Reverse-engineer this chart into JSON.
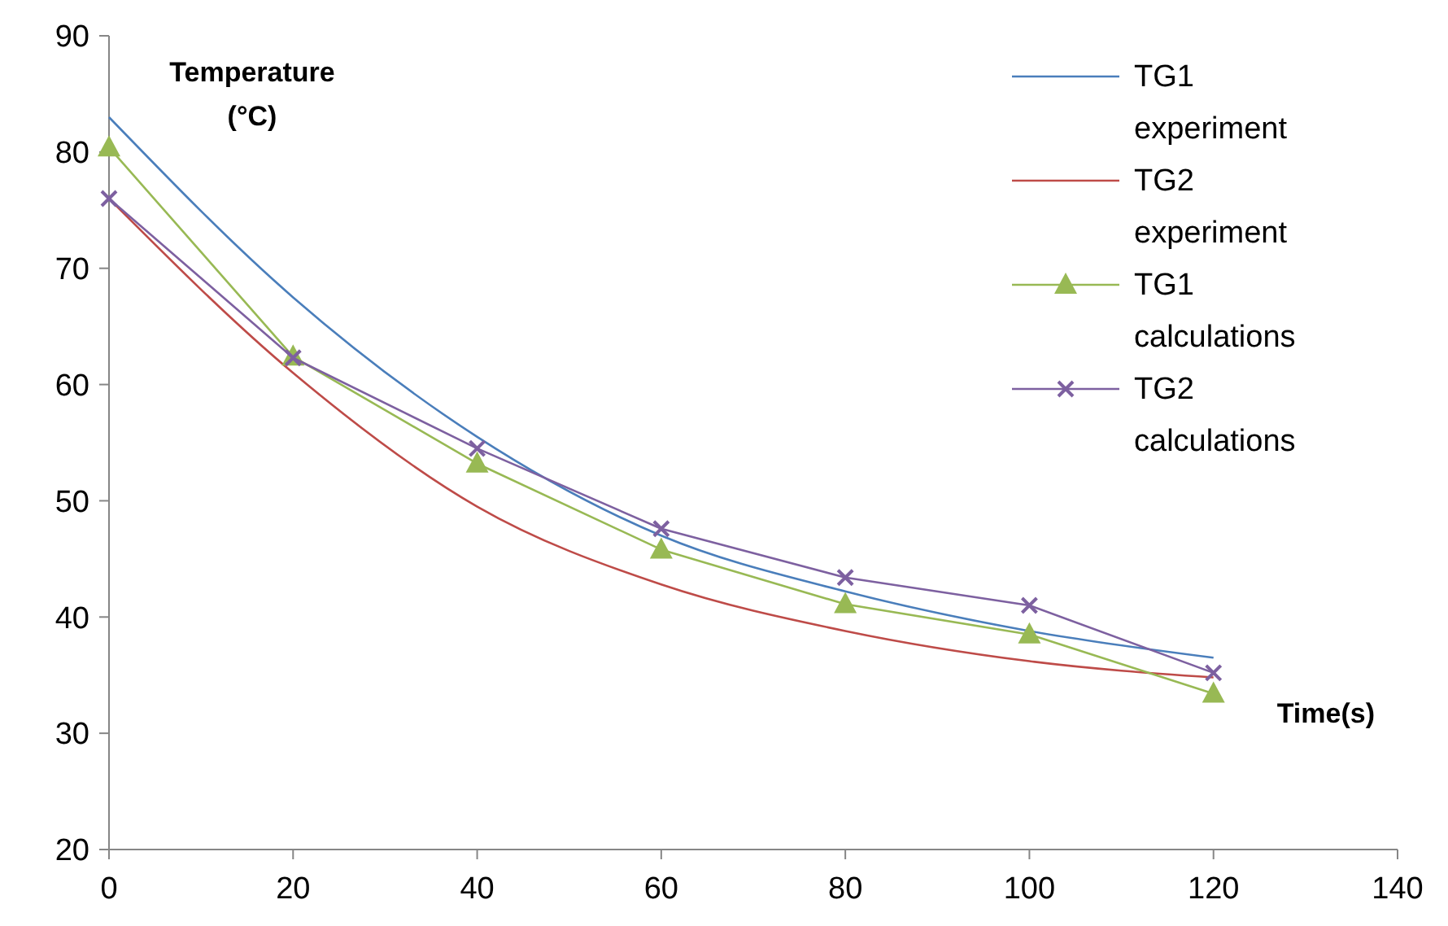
{
  "chart_data": {
    "type": "line",
    "xlabel": "Time(s)",
    "ylabel": "Temperature (°C)",
    "x": [
      0,
      20,
      40,
      60,
      80,
      100,
      120
    ],
    "xlim": [
      0,
      140
    ],
    "xticks": [
      0,
      20,
      40,
      60,
      80,
      100,
      120,
      140
    ],
    "ylim": [
      20,
      90
    ],
    "yticks": [
      20,
      30,
      40,
      50,
      60,
      70,
      80,
      90
    ],
    "grid": false,
    "legend": "top right",
    "series": [
      {
        "name": "TG1 experiment",
        "color": "#4a7ebb",
        "marker": "none",
        "values": [
          83,
          67.5,
          55.5,
          47,
          42.2,
          38.8,
          36.5
        ]
      },
      {
        "name": "TG2 experiment",
        "color": "#be4b48",
        "marker": "none",
        "values": [
          76,
          61,
          49.5,
          42.8,
          38.8,
          36.2,
          34.8
        ]
      },
      {
        "name": "TG1 calculations",
        "color": "#98b954",
        "marker": "triangle",
        "values": [
          80.4,
          62.4,
          53.2,
          45.8,
          41.1,
          38.5,
          33.4
        ]
      },
      {
        "name": "TG2 calculations",
        "color": "#7d60a0",
        "marker": "cross",
        "values": [
          76,
          62.3,
          54.5,
          47.6,
          43.4,
          41,
          35.2
        ]
      }
    ]
  }
}
